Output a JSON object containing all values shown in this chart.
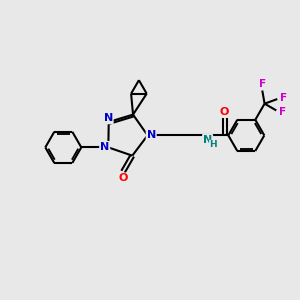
{
  "background_color": "#e8e8e8",
  "bond_color": "#000000",
  "nitrogen_color": "#0000cc",
  "oxygen_color": "#ff0000",
  "fluorine_color": "#cc00cc",
  "nh_color": "#008080",
  "bond_width": 1.5,
  "figsize": [
    3.0,
    3.0
  ],
  "dpi": 100,
  "xlim": [
    0,
    10
  ],
  "ylim": [
    0,
    10
  ]
}
